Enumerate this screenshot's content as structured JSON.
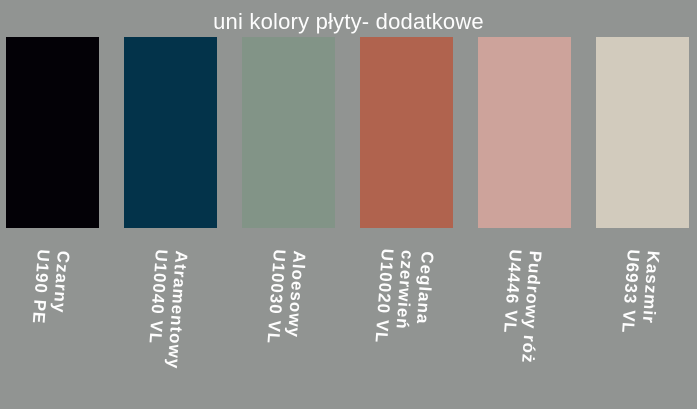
{
  "title": "uni kolory płyty- dodatkowe",
  "colors": {
    "background": "#919492",
    "text": "#fdfdfd"
  },
  "swatches": [
    {
      "name": "Czarny",
      "code": "U190 PE",
      "color": "#030106",
      "label": "Czarny\nU190 PE"
    },
    {
      "name": "Atramentowy",
      "code": "U10040 VL",
      "color": "#03334a",
      "label": "Atramentowy\nU10040 VL"
    },
    {
      "name": "Aloesowy",
      "code": "U10030 VL",
      "color": "#829487",
      "label": "Aloesowy\nU10030 VL"
    },
    {
      "name": "Ceglana czerwień",
      "code": "U10020 VL",
      "color": "#b0634e",
      "label": "Ceglana\nczerwień\nU10020 VL"
    },
    {
      "name": "Pudrowy róż",
      "code": "U4446 VL",
      "color": "#cda39b",
      "label": "Pudrowy róż\nU4446 VL"
    },
    {
      "name": "Kaszmir",
      "code": "U6933 VL",
      "color": "#d2cbbd",
      "label": "Kaszmir\nU6933 VL"
    }
  ]
}
